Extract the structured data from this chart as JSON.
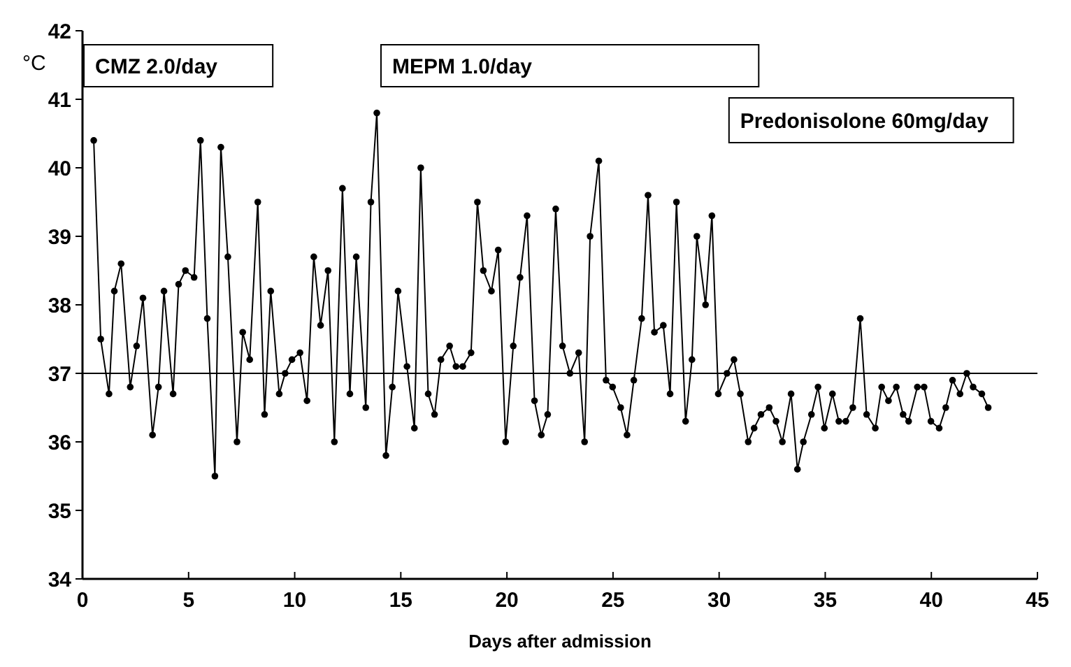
{
  "chart_data": {
    "type": "line",
    "xlabel": "Days after admission",
    "ylabel": "°C",
    "x": [
      0.53,
      0.86,
      1.25,
      1.5,
      1.82,
      2.25,
      2.55,
      2.85,
      3.3,
      3.58,
      3.84,
      4.27,
      4.53,
      4.85,
      5.26,
      5.56,
      5.88,
      6.24,
      6.52,
      6.85,
      7.28,
      7.55,
      7.88,
      8.26,
      8.58,
      8.87,
      9.27,
      9.55,
      9.87,
      10.25,
      10.58,
      10.9,
      11.22,
      11.57,
      11.87,
      12.25,
      12.6,
      12.9,
      13.35,
      13.59,
      13.87,
      14.3,
      14.6,
      14.87,
      15.29,
      15.64,
      15.94,
      16.29,
      16.59,
      16.89,
      17.3,
      17.6,
      17.92,
      18.31,
      18.61,
      18.89,
      19.27,
      19.59,
      19.94,
      20.3,
      20.62,
      20.95,
      21.3,
      21.62,
      21.92,
      22.3,
      22.62,
      22.97,
      23.38,
      23.66,
      23.92,
      24.33,
      24.67,
      24.98,
      25.36,
      25.66,
      25.98,
      26.35,
      26.65,
      26.95,
      27.37,
      27.69,
      27.99,
      28.42,
      28.72,
      28.95,
      29.36,
      29.66,
      29.96,
      30.37,
      30.7,
      31.0,
      31.37,
      31.65,
      31.97,
      32.36,
      32.68,
      32.98,
      33.39,
      33.69,
      33.97,
      34.35,
      34.66,
      34.96,
      35.34,
      35.64,
      35.97,
      36.3,
      36.65,
      36.95,
      37.36,
      37.66,
      37.98,
      38.35,
      38.67,
      38.93,
      39.34,
      39.66,
      39.98,
      40.37,
      40.68,
      41.0,
      41.35,
      41.67,
      41.97,
      42.38,
      42.68
    ],
    "series": [
      {
        "color": "#000000",
        "values": [
          40.4,
          37.5,
          36.7,
          38.2,
          38.6,
          36.8,
          37.4,
          38.1,
          36.1,
          36.8,
          38.2,
          36.7,
          38.3,
          38.5,
          38.4,
          40.4,
          37.8,
          35.5,
          40.3,
          38.7,
          36.0,
          37.6,
          37.2,
          39.5,
          36.4,
          38.2,
          36.7,
          37.0,
          37.2,
          37.3,
          36.6,
          38.7,
          37.7,
          38.5,
          36.0,
          39.7,
          36.7,
          38.7,
          36.5,
          39.5,
          40.8,
          35.8,
          36.8,
          38.2,
          37.1,
          36.2,
          40.0,
          36.7,
          36.4,
          37.2,
          37.4,
          37.1,
          37.1,
          37.3,
          39.5,
          38.5,
          38.2,
          38.8,
          36.0,
          37.4,
          38.4,
          39.3,
          36.6,
          36.1,
          36.4,
          39.4,
          37.4,
          37.0,
          37.3,
          36.0,
          39.0,
          40.1,
          36.9,
          36.8,
          36.5,
          36.1,
          36.9,
          37.8,
          39.6,
          37.6,
          37.7,
          36.7,
          39.5,
          36.3,
          37.2,
          39.0,
          38.0,
          39.3,
          36.7,
          37.0,
          37.2,
          36.7,
          36.0,
          36.2,
          36.4,
          36.5,
          36.3,
          36.0,
          36.7,
          35.6,
          36.0,
          36.4,
          36.8,
          36.2,
          36.7,
          36.3,
          36.3,
          36.5,
          37.8,
          36.4,
          36.2,
          36.8,
          36.6,
          36.8,
          36.4,
          36.3,
          36.8,
          36.8,
          36.3,
          36.2,
          36.5,
          36.9,
          36.7,
          37.0,
          36.8,
          36.7,
          36.5
        ]
      }
    ],
    "xlim": [
      0,
      45
    ],
    "xticks": [
      0,
      5,
      10,
      15,
      20,
      25,
      30,
      35,
      40,
      45
    ],
    "ylim": [
      34,
      42
    ],
    "yticks": [
      34,
      35,
      36,
      37,
      38,
      39,
      40,
      41,
      42
    ],
    "ref_lines": [
      {
        "axis": "y",
        "value": 37,
        "color": "#000000"
      }
    ],
    "annotations": [
      "CMZ 2.0/day",
      "MEPM 1.0/day",
      "Predonisolone 60mg/day"
    ],
    "marker": "circle",
    "line_style": "solid",
    "grid": false
  }
}
